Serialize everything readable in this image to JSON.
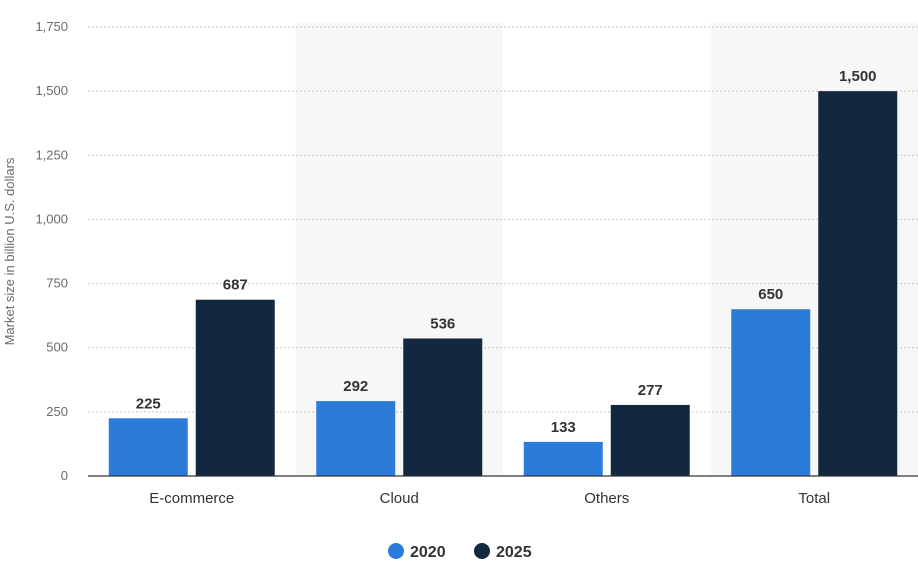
{
  "chart_data": {
    "type": "bar",
    "title": "",
    "xlabel": "",
    "ylabel": "Market size in billion U.S. dollars",
    "ylim": [
      0,
      1750
    ],
    "yticks": [
      0,
      250,
      500,
      750,
      1000,
      1250,
      1500,
      1750
    ],
    "ytick_labels": [
      "0",
      "250",
      "500",
      "750",
      "1,000",
      "1,250",
      "1,500",
      "1,750"
    ],
    "grid": true,
    "legend_position": "bottom-center",
    "categories": [
      "E-commerce",
      "Cloud",
      "Others",
      "Total"
    ],
    "series": [
      {
        "name": "2020",
        "color": "#2b7bdb",
        "values": [
          225,
          292,
          133,
          650
        ],
        "value_labels": [
          "225",
          "292",
          "133",
          "650"
        ]
      },
      {
        "name": "2025",
        "color": "#13283f",
        "values": [
          687,
          536,
          277,
          1500
        ],
        "value_labels": [
          "687",
          "536",
          "277",
          "1,500"
        ]
      }
    ],
    "band_color": "#f7f7f7"
  }
}
